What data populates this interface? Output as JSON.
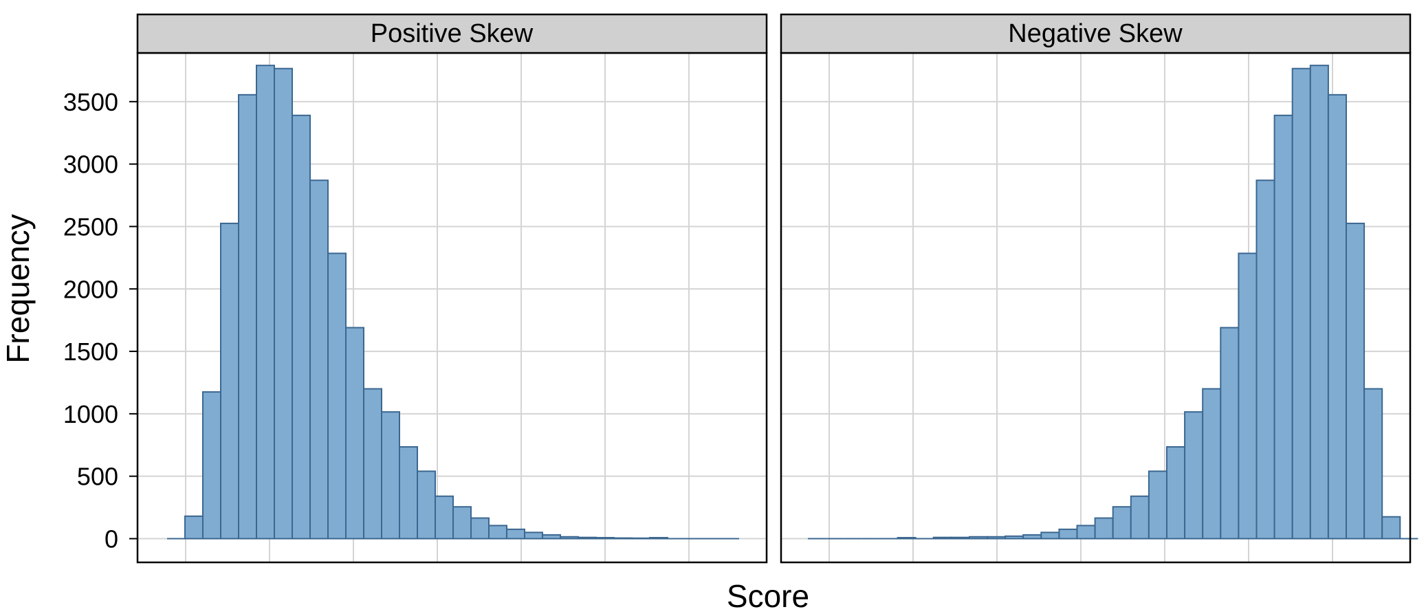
{
  "chart_data": {
    "type": "bar",
    "xlabel": "Score",
    "ylabel": "Frequency",
    "ylim": [
      -190,
      3890
    ],
    "y_ticks": [
      0,
      500,
      1000,
      1500,
      2000,
      2500,
      3000,
      3500
    ],
    "y_tick_labels": [
      "0",
      "500",
      "1000",
      "1500",
      "2000",
      "2500",
      "3000",
      "3500"
    ],
    "grid": true,
    "panels": [
      {
        "title": "Positive Skew",
        "values": [
          0,
          180,
          1175,
          2525,
          3555,
          3790,
          3765,
          3390,
          2870,
          2285,
          1690,
          1200,
          1015,
          735,
          540,
          340,
          255,
          165,
          105,
          75,
          50,
          30,
          15,
          10,
          8,
          5,
          4,
          8,
          2,
          2,
          2,
          2
        ],
        "zero_bins": [
          0,
          28,
          29,
          30,
          31
        ]
      },
      {
        "title": "Negative Skew",
        "values": [
          2,
          2,
          2,
          2,
          2,
          8,
          4,
          10,
          10,
          15,
          15,
          20,
          30,
          50,
          75,
          105,
          165,
          255,
          340,
          540,
          735,
          1015,
          1200,
          1690,
          2285,
          2870,
          3390,
          3765,
          3790,
          3555,
          2525,
          1200,
          175,
          0
        ],
        "zero_bins": [
          0,
          1,
          2,
          3,
          4,
          6,
          33
        ]
      }
    ]
  },
  "colors": {
    "bar_fill": "#80acd2",
    "bar_stroke": "#3b6790",
    "strip_fill": "#d0d0d0",
    "grid": "#d4d4d4",
    "frame": "#000000"
  }
}
